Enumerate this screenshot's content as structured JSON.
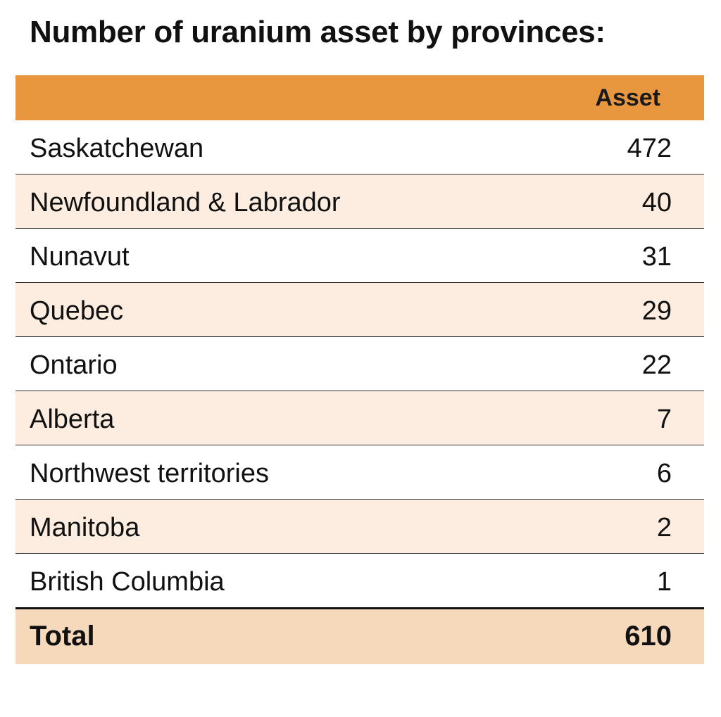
{
  "chart_data": {
    "type": "table",
    "title": "Number of uranium asset by provinces:",
    "columns": [
      "",
      "Asset"
    ],
    "rows": [
      {
        "label": "Saskatchewan",
        "value": "472"
      },
      {
        "label": "Newfoundland & Labrador",
        "value": "40"
      },
      {
        "label": "Nunavut",
        "value": "31"
      },
      {
        "label": "Quebec",
        "value": "29"
      },
      {
        "label": "Ontario",
        "value": "22"
      },
      {
        "label": "Alberta",
        "value": "7"
      },
      {
        "label": "Northwest territories",
        "value": "6"
      },
      {
        "label": "Manitoba",
        "value": "2"
      },
      {
        "label": "British Columbia",
        "value": "1"
      }
    ],
    "total": {
      "label": "Total",
      "value": "610"
    },
    "colors": {
      "header": "#e8973f",
      "alt_row": "#fcede0",
      "total_row": "#f6d8bb"
    }
  }
}
